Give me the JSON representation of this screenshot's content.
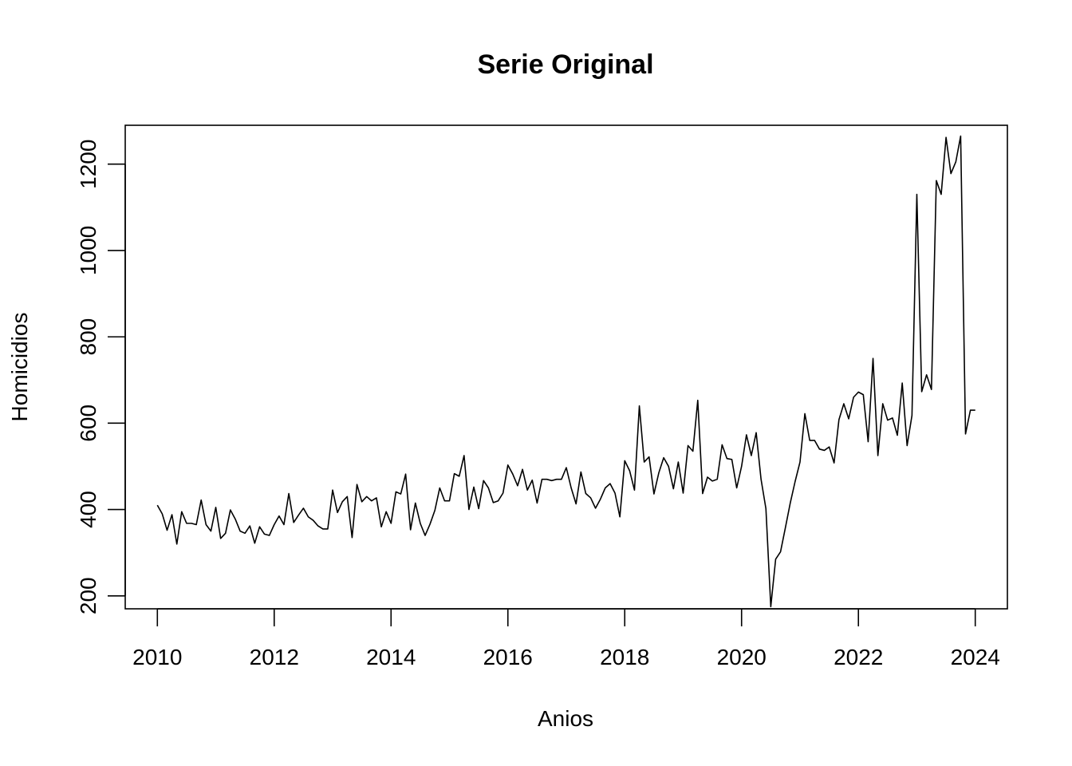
{
  "chart_data": {
    "type": "line",
    "title": "Serie Original",
    "xlabel": "Anios",
    "ylabel": "Homicidios",
    "x_start": 2010,
    "frequency": "monthly",
    "xlim": [
      2009.45,
      2024.55
    ],
    "ylim": [
      170,
      1290
    ],
    "x_ticks": [
      2010,
      2012,
      2014,
      2016,
      2018,
      2020,
      2022,
      2024
    ],
    "y_ticks": [
      200,
      400,
      600,
      800,
      1000,
      1200
    ],
    "grid": false,
    "series": [
      {
        "name": "",
        "values": [
          410,
          390,
          352,
          388,
          320,
          395,
          368,
          368,
          365,
          422,
          365,
          350,
          405,
          333,
          345,
          399,
          378,
          350,
          345,
          362,
          322,
          360,
          343,
          340,
          365,
          385,
          365,
          437,
          370,
          387,
          403,
          383,
          375,
          362,
          355,
          355,
          445,
          393,
          418,
          430,
          335,
          458,
          418,
          430,
          420,
          427,
          360,
          395,
          368,
          441,
          436,
          482,
          353,
          415,
          368,
          340,
          366,
          398,
          450,
          420,
          420,
          483,
          477,
          525,
          400,
          452,
          402,
          467,
          450,
          416,
          420,
          438,
          503,
          482,
          455,
          493,
          445,
          468,
          415,
          470,
          470,
          467,
          470,
          470,
          497,
          450,
          413,
          487,
          437,
          427,
          403,
          424,
          450,
          460,
          438,
          383,
          513,
          490,
          445,
          640,
          510,
          522,
          436,
          485,
          520,
          500,
          448,
          510,
          438,
          548,
          535,
          653,
          437,
          475,
          466,
          470,
          550,
          518,
          516,
          450,
          500,
          573,
          525,
          578,
          470,
          402,
          175,
          285,
          302,
          358,
          415,
          465,
          510,
          622,
          560,
          560,
          540,
          537,
          545,
          508,
          608,
          645,
          610,
          660,
          672,
          666,
          557,
          750,
          525,
          645,
          607,
          612,
          572,
          693,
          548,
          618,
          1130,
          673,
          712,
          678,
          1162,
          1130,
          1262,
          1178,
          1205,
          1265,
          575,
          630,
          630
        ]
      }
    ]
  }
}
